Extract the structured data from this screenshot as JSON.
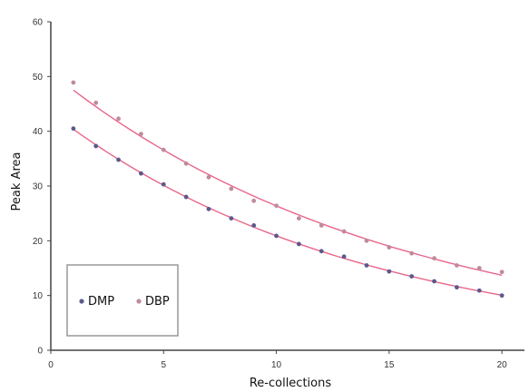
{
  "chart_data": {
    "type": "scatter",
    "title": "",
    "xlabel": "Re-collections",
    "ylabel": "Peak Area",
    "xlim": [
      0,
      21
    ],
    "ylim": [
      0,
      60
    ],
    "xticks": [
      0,
      5,
      10,
      15,
      20
    ],
    "yticks": [
      0,
      10,
      20,
      30,
      40,
      50,
      60
    ],
    "grid": false,
    "legend_position": "bottom-left",
    "trendline_color": "#e8678a",
    "x": [
      1,
      2,
      3,
      4,
      5,
      6,
      7,
      8,
      9,
      10,
      11,
      12,
      13,
      14,
      15,
      16,
      17,
      18,
      19,
      20
    ],
    "series": [
      {
        "name": "DMP",
        "marker_color": "#5a5a8c",
        "trendline": "exponential",
        "values": [
          40.5,
          37.3,
          34.8,
          32.3,
          30.3,
          28.0,
          25.8,
          24.1,
          22.8,
          20.9,
          19.4,
          18.1,
          17.1,
          15.5,
          14.4,
          13.5,
          12.6,
          11.5,
          10.9,
          10.0
        ]
      },
      {
        "name": "DBP",
        "marker_color": "#c08a9a",
        "trendline": "exponential",
        "values": [
          48.9,
          45.2,
          42.3,
          39.5,
          36.6,
          34.1,
          31.6,
          29.5,
          27.3,
          26.4,
          24.1,
          22.8,
          21.7,
          20.0,
          18.8,
          17.7,
          16.8,
          15.5,
          15.0,
          14.3
        ]
      }
    ]
  }
}
